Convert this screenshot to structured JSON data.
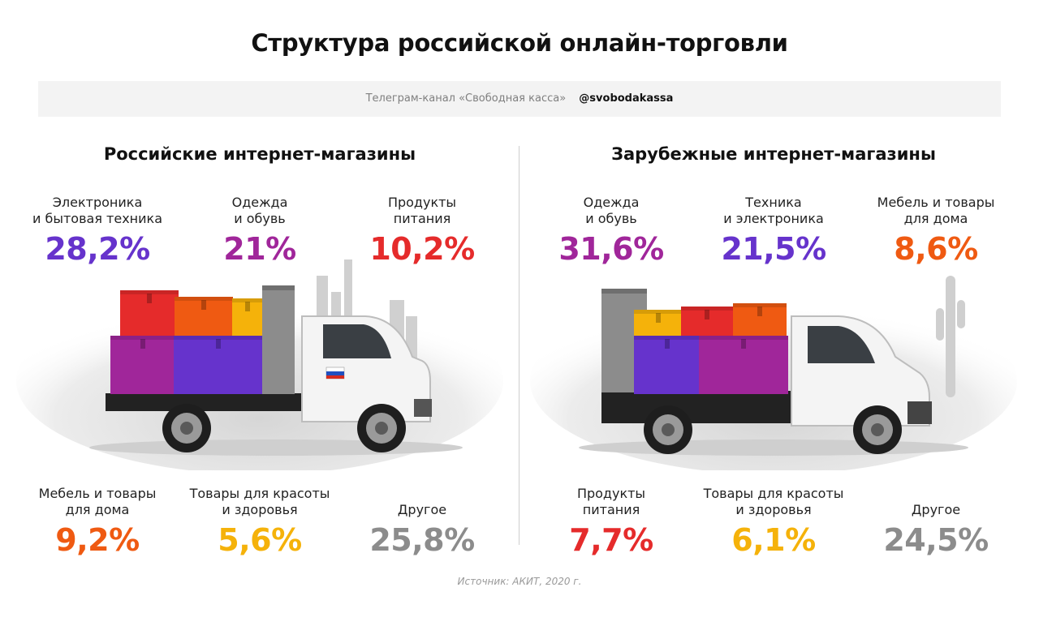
{
  "title": "Структура российской онлайн-торговли",
  "banner": {
    "channel": "Телеграм-канал «Свободная касса»",
    "handle": "@svobodakassa"
  },
  "source": "Источник: АКИТ, 2020 г.",
  "colors": {
    "purple": "#6633cc",
    "magenta": "#a0269a",
    "red": "#e52b2b",
    "orange": "#ef5a12",
    "yellow": "#f5b20a",
    "gray": "#8c8c8c"
  },
  "chart_data": [
    {
      "type": "bar",
      "title": "Российские интернет-магазины",
      "unit": "%",
      "series": [
        {
          "name": "Электроника и бытовая техника",
          "value": 28.2,
          "label": "28,2%",
          "label_lines": [
            "Электроника",
            "и бытовая техника"
          ],
          "color": "#6633cc"
        },
        {
          "name": "Одежда и обувь",
          "value": 21,
          "label": "21%",
          "label_lines": [
            "Одежда",
            "и обувь"
          ],
          "color": "#a0269a"
        },
        {
          "name": "Продукты питания",
          "value": 10.2,
          "label": "10,2%",
          "label_lines": [
            "Продукты",
            "питания"
          ],
          "color": "#e52b2b"
        },
        {
          "name": "Мебель и товары для дома",
          "value": 9.2,
          "label": "9,2%",
          "label_lines": [
            "Мебель и товары",
            "для дома"
          ],
          "color": "#ef5a12"
        },
        {
          "name": "Товары для красоты и здоровья",
          "value": 5.6,
          "label": "5,6%",
          "label_lines": [
            "Товары для красоты",
            "и здоровья"
          ],
          "color": "#f5b20a"
        },
        {
          "name": "Другое",
          "value": 25.8,
          "label": "25,8%",
          "label_lines": [
            "Другое"
          ],
          "color": "#8c8c8c"
        }
      ]
    },
    {
      "type": "bar",
      "title": "Зарубежные интернет-магазины",
      "unit": "%",
      "series": [
        {
          "name": "Одежда и обувь",
          "value": 31.6,
          "label": "31,6%",
          "label_lines": [
            "Одежда",
            "и обувь"
          ],
          "color": "#a0269a"
        },
        {
          "name": "Техника и электроника",
          "value": 21.5,
          "label": "21,5%",
          "label_lines": [
            "Техника",
            "и электроника"
          ],
          "color": "#6633cc"
        },
        {
          "name": "Мебель и товары для дома",
          "value": 8.6,
          "label": "8,6%",
          "label_lines": [
            "Мебель и товары",
            "для дома"
          ],
          "color": "#ef5a12"
        },
        {
          "name": "Продукты питания",
          "value": 7.7,
          "label": "7,7%",
          "label_lines": [
            "Продукты",
            "питания"
          ],
          "color": "#e52b2b"
        },
        {
          "name": "Товары для красоты и здоровья",
          "value": 6.1,
          "label": "6,1%",
          "label_lines": [
            "Товары для красоты",
            "и здоровья"
          ],
          "color": "#f5b20a"
        },
        {
          "name": "Другое",
          "value": 24.5,
          "label": "24,5%",
          "label_lines": [
            "Другое"
          ],
          "color": "#8c8c8c"
        }
      ]
    }
  ]
}
